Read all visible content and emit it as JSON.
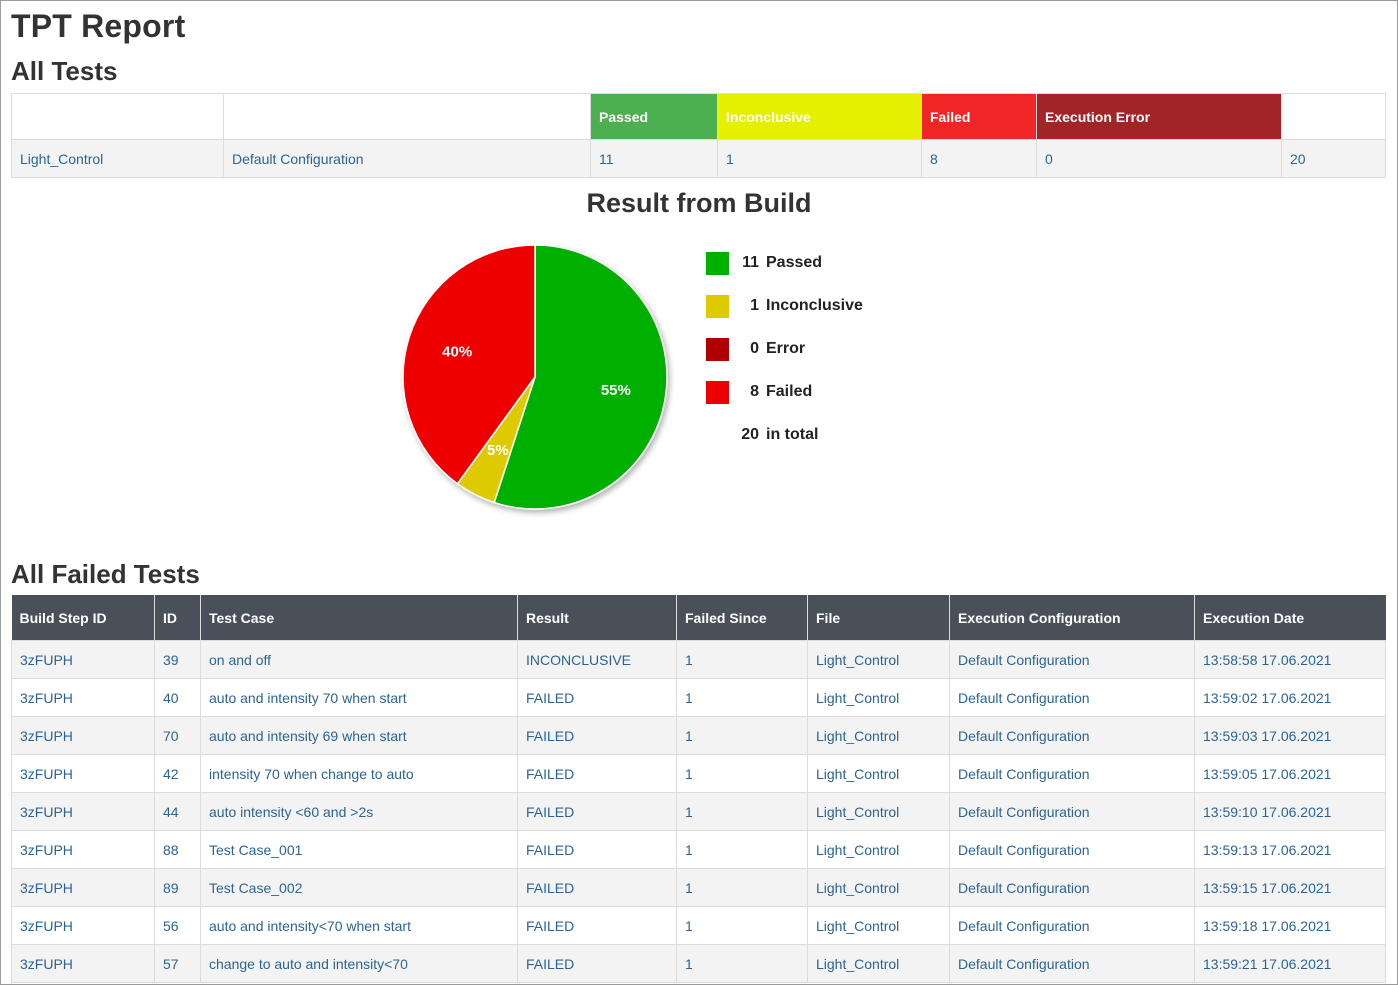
{
  "page": {
    "title": "TPT Report",
    "section_all": "All Tests",
    "section_failed": "All Failed Tests"
  },
  "summary": {
    "headers": [
      "",
      "",
      "Passed",
      "Inconclusive",
      "Failed",
      "Execution Error",
      ""
    ],
    "header_colors": [
      "#ffffff",
      "#ffffff",
      "#4caf50",
      "#e5ef00",
      "#f02626",
      "#a32426",
      "#ffffff"
    ],
    "row": [
      "Light_Control",
      "Default Configuration",
      "11",
      "1",
      "8",
      "0",
      "20"
    ]
  },
  "chart": {
    "title": "Result from Build",
    "legend": [
      {
        "count": "11",
        "label": "Passed",
        "color": "#00b000"
      },
      {
        "count": "1",
        "label": "Inconclusive",
        "color": "#ddca00"
      },
      {
        "count": "0",
        "label": "Error",
        "color": "#b00000"
      },
      {
        "count": "8",
        "label": "Failed",
        "color": "#ee0000"
      }
    ],
    "total_count": "20",
    "total_label": "in total"
  },
  "chart_data": {
    "type": "pie",
    "title": "Result from Build",
    "categories": [
      "Passed",
      "Inconclusive",
      "Error",
      "Failed"
    ],
    "values": [
      11,
      1,
      0,
      8
    ],
    "slice_labels": [
      "55%",
      "5%",
      "",
      "40%"
    ],
    "colors": [
      "#00b000",
      "#ddca00",
      "#b00000",
      "#ee0000"
    ],
    "legend_position": "right"
  },
  "failed_tests": {
    "columns": [
      "Build Step ID",
      "ID",
      "Test Case",
      "Result",
      "Failed Since",
      "File",
      "Execution Configuration",
      "Execution Date"
    ],
    "rows": [
      [
        "3zFUPH",
        "39",
        "on and off",
        "INCONCLUSIVE",
        "1",
        "Light_Control",
        "Default Configuration",
        "13:58:58 17.06.2021"
      ],
      [
        "3zFUPH",
        "40",
        "auto and intensity 70 when start",
        "FAILED",
        "1",
        "Light_Control",
        "Default Configuration",
        "13:59:02 17.06.2021"
      ],
      [
        "3zFUPH",
        "70",
        "auto and intensity 69 when start",
        "FAILED",
        "1",
        "Light_Control",
        "Default Configuration",
        "13:59:03 17.06.2021"
      ],
      [
        "3zFUPH",
        "42",
        "intensity 70 when change to auto",
        "FAILED",
        "1",
        "Light_Control",
        "Default Configuration",
        "13:59:05 17.06.2021"
      ],
      [
        "3zFUPH",
        "44",
        "auto intensity <60 and >2s",
        "FAILED",
        "1",
        "Light_Control",
        "Default Configuration",
        "13:59:10 17.06.2021"
      ],
      [
        "3zFUPH",
        "88",
        "Test Case_001",
        "FAILED",
        "1",
        "Light_Control",
        "Default Configuration",
        "13:59:13 17.06.2021"
      ],
      [
        "3zFUPH",
        "89",
        "Test Case_002",
        "FAILED",
        "1",
        "Light_Control",
        "Default Configuration",
        "13:59:15 17.06.2021"
      ],
      [
        "3zFUPH",
        "56",
        "auto and intensity<70 when start",
        "FAILED",
        "1",
        "Light_Control",
        "Default Configuration",
        "13:59:18 17.06.2021"
      ],
      [
        "3zFUPH",
        "57",
        "change to auto and intensity<70",
        "FAILED",
        "1",
        "Light_Control",
        "Default Configuration",
        "13:59:21 17.06.2021"
      ]
    ]
  }
}
